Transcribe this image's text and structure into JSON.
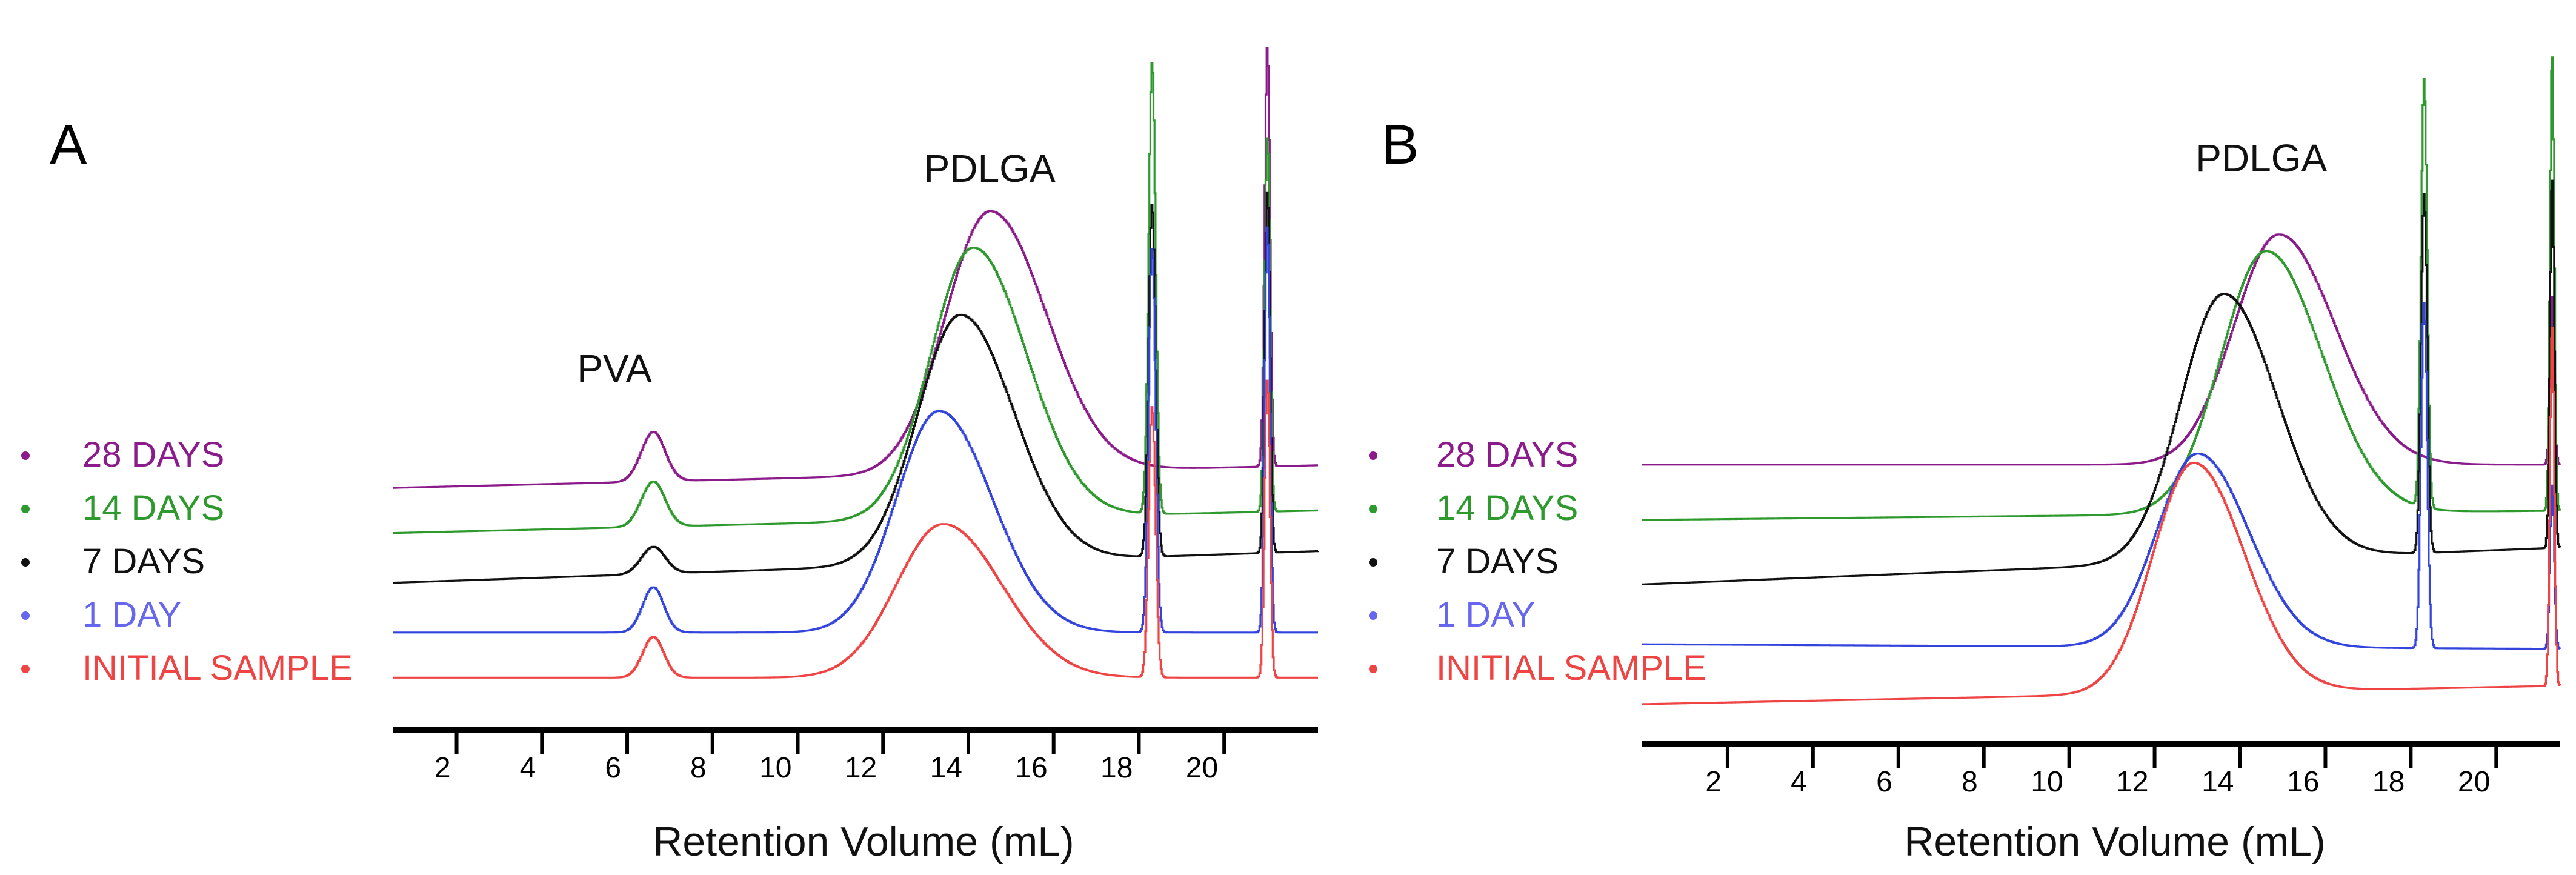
{
  "chart_data": [
    {
      "type": "line",
      "panel_label": "A",
      "xlabel": "Retention Volume (mL)",
      "ylabel": "",
      "xlim": [
        0.5,
        22.2
      ],
      "x_ticks": [
        2,
        4,
        6,
        8,
        10,
        12,
        14,
        16,
        18,
        20
      ],
      "peak_annotations": [
        {
          "text": "PVA",
          "x": 5.7
        },
        {
          "text": "PDLGA",
          "x": 14.5
        }
      ],
      "legend": {
        "placement": "left",
        "entries": [
          {
            "label": "28 DAYS",
            "color": "#8b1a8b"
          },
          {
            "label": "14 DAYS",
            "color": "#2e9a2e"
          },
          {
            "label": "7 DAYS",
            "color": "#111111"
          },
          {
            "label": "1 DAY",
            "color": "#6666ee"
          },
          {
            "label": "INITIAL SAMPLE",
            "color": "#ee4444"
          }
        ]
      },
      "series": [
        {
          "name": "28 DAYS",
          "color": "#8b1a8b",
          "baseline": 0.5,
          "peaks": [
            [
              6.6,
              0.11,
              0.28
            ],
            [
              14.5,
              0.58,
              1.05
            ],
            [
              18.3,
              0.0,
              0.0
            ],
            [
              21.0,
              0.93,
              0.06
            ]
          ],
          "end": 0.55
        },
        {
          "name": "14 DAYS",
          "color": "#2e9a2e",
          "baseline": 0.4,
          "peaks": [
            [
              6.6,
              0.1,
              0.28
            ],
            [
              14.1,
              0.6,
              1.0
            ],
            [
              18.3,
              1.0,
              0.08
            ],
            [
              21.0,
              0.83,
              0.06
            ]
          ],
          "end": 0.45
        },
        {
          "name": "7 DAYS",
          "color": "#111111",
          "baseline": 0.29,
          "peaks": [
            [
              6.6,
              0.06,
              0.28
            ],
            [
              13.8,
              0.55,
              1.0
            ],
            [
              18.3,
              0.78,
              0.08
            ],
            [
              21.0,
              0.8,
              0.06
            ]
          ],
          "end": 0.36
        },
        {
          "name": "1 DAY",
          "color": "#3344dd",
          "baseline": 0.18,
          "peaks": [
            [
              6.6,
              0.1,
              0.25
            ],
            [
              13.3,
              0.49,
              1.0
            ],
            [
              18.3,
              0.85,
              0.08
            ],
            [
              21.0,
              0.9,
              0.06
            ]
          ],
          "end": 0.18
        },
        {
          "name": "INITIAL SAMPLE",
          "color": "#ee4444",
          "baseline": 0.08,
          "peaks": [
            [
              6.6,
              0.09,
              0.25
            ],
            [
              13.4,
              0.34,
              1.1
            ],
            [
              18.3,
              0.6,
              0.08
            ],
            [
              21.0,
              0.66,
              0.06
            ]
          ],
          "end": 0.08
        }
      ]
    },
    {
      "type": "line",
      "panel_label": "B",
      "xlabel": "Retention Volume (mL)",
      "ylabel": "",
      "xlim": [
        0.0,
        21.5
      ],
      "x_ticks": [
        2,
        4,
        6,
        8,
        10,
        12,
        14,
        16,
        18,
        20
      ],
      "peak_annotations": [
        {
          "text": "PDLGA",
          "x": 14.5
        }
      ],
      "legend": {
        "placement": "left",
        "entries": [
          {
            "label": "28 DAYS",
            "color": "#8b1a8b"
          },
          {
            "label": "14 DAYS",
            "color": "#2e9a2e"
          },
          {
            "label": "7 DAYS",
            "color": "#111111"
          },
          {
            "label": "1 DAY",
            "color": "#6666ee"
          },
          {
            "label": "INITIAL SAMPLE",
            "color": "#ee4444"
          }
        ]
      },
      "series": [
        {
          "name": "28 DAYS",
          "color": "#8b1a8b",
          "baseline": 0.57,
          "peaks": [
            [
              14.9,
              0.5,
              1.05
            ],
            [
              21.3,
              0.37,
              0.05
            ]
          ],
          "end": 0.57
        },
        {
          "name": "14 DAYS",
          "color": "#2e9a2e",
          "baseline": 0.45,
          "peaks": [
            [
              14.6,
              0.57,
              1.05
            ],
            [
              18.3,
              0.93,
              0.07
            ],
            [
              21.3,
              1.0,
              0.05
            ]
          ],
          "end": 0.47
        },
        {
          "name": "7 DAYS",
          "color": "#111111",
          "baseline": 0.31,
          "peaks": [
            [
              13.6,
              0.58,
              1.0
            ],
            [
              18.3,
              0.78,
              0.07
            ],
            [
              21.3,
              0.81,
              0.05
            ]
          ],
          "end": 0.39
        },
        {
          "name": "1 DAY",
          "color": "#3344dd",
          "baseline": 0.18,
          "peaks": [
            [
              13.0,
              0.42,
              0.95
            ],
            [
              18.3,
              0.75,
              0.07
            ],
            [
              21.3,
              0.36,
              0.05
            ]
          ],
          "end": 0.17
        },
        {
          "name": "INITIAL SAMPLE",
          "color": "#ee4444",
          "baseline": 0.05,
          "peaks": [
            [
              12.9,
              0.5,
              0.95
            ],
            [
              21.3,
              0.79,
              0.05
            ]
          ],
          "end": 0.09
        }
      ]
    }
  ]
}
